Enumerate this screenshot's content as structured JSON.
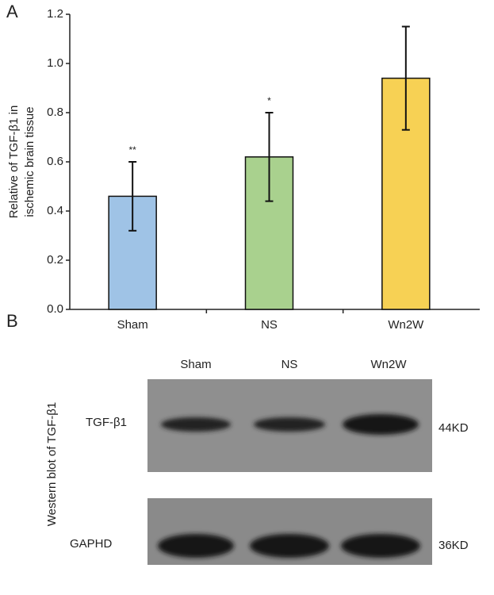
{
  "panel_labels": [
    "A",
    "B"
  ],
  "chart_data": {
    "type": "bar",
    "ylabel": [
      "Relative of TGF-β1 in",
      "ischemic brain tissue"
    ],
    "categories": [
      "Sham",
      "NS",
      "Wn2W"
    ],
    "values": [
      0.46,
      0.62,
      0.94
    ],
    "errors": [
      0.14,
      0.18,
      0.21
    ],
    "annotations": [
      "**",
      "*",
      null
    ],
    "colors": [
      "#9fc3e6",
      "#a9d18e",
      "#f7d154"
    ],
    "ylim": [
      0,
      1.2
    ],
    "yticks": [
      {
        "value": 0,
        "label": "0.0"
      },
      0.2,
      0.4,
      0.6,
      0.8,
      {
        "value": 1,
        "label": "1.0"
      },
      1.2
    ]
  },
  "blot": {
    "title": "Western blot of TGF-β1",
    "columns": [
      "Sham",
      "NS",
      "Wn2W"
    ],
    "rows": [
      {
        "label": "TGF-β1",
        "size": "44KD"
      },
      {
        "label": "GAPHD",
        "size": "36KD"
      }
    ]
  }
}
